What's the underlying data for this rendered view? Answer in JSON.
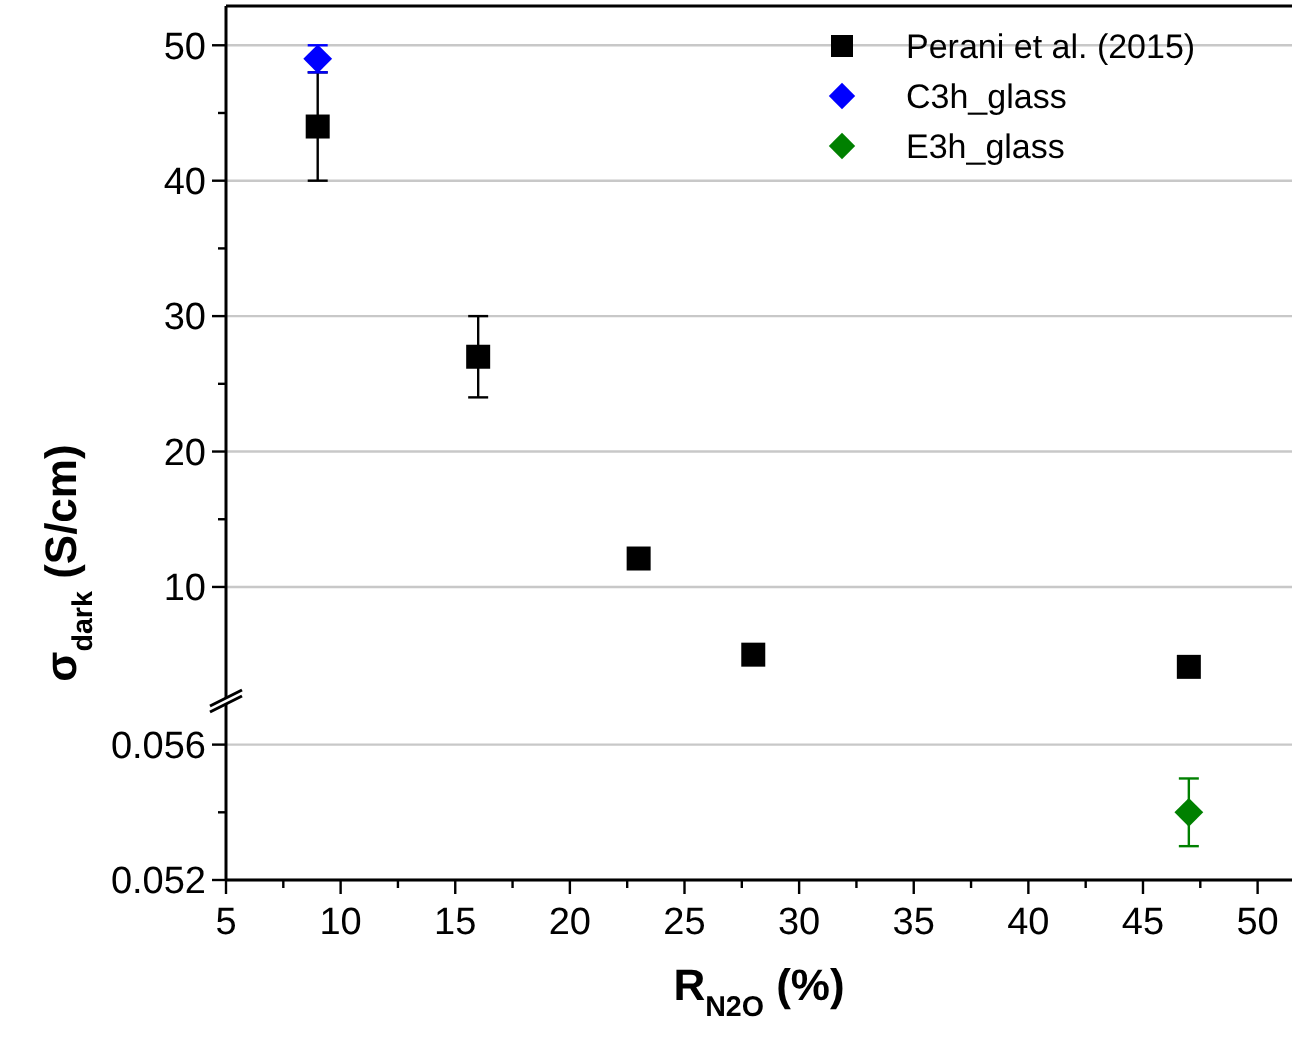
{
  "chart_data": [
    {
      "type": "scatter",
      "ylabel": "σ$_{dark}$ (S/cm)",
      "xlim": [
        5,
        51.5
      ],
      "ylim": [
        1.8,
        52.9
      ],
      "yticks": [
        10,
        {
          "value": 15,
          "label": null
        },
        20,
        {
          "value": 25,
          "label": null
        },
        30,
        {
          "value": 35,
          "label": null
        },
        40,
        {
          "value": 45,
          "label": null
        },
        50
      ],
      "tick_labels": "y",
      "grid": "y",
      "legend": "top right",
      "series": [
        {
          "name": "Perani et al. (2015)",
          "color": "#000000",
          "marker": "square",
          "x": [
            9,
            16,
            23,
            28,
            47
          ],
          "values": [
            44,
            27,
            12.1,
            5.0,
            4.1
          ],
          "errors": [
            4,
            3,
            0.7,
            null,
            null
          ]
        },
        {
          "name": "C3h_glass",
          "color": "#0000ff",
          "marker": "diamond",
          "x": [
            9
          ],
          "values": [
            49
          ],
          "errors": [
            1
          ]
        }
      ]
    },
    {
      "type": "scatter",
      "xlabel": "R$_{N2O}$ (%)",
      "xlim": [
        5,
        51.5
      ],
      "xticks": [
        5,
        {
          "value": 7.5,
          "label": null
        },
        10,
        {
          "value": 12.5,
          "label": null
        },
        15,
        {
          "value": 17.5,
          "label": null
        },
        20,
        {
          "value": 22.5,
          "label": null
        },
        25,
        {
          "value": 27.5,
          "label": null
        },
        30,
        {
          "value": 32.5,
          "label": null
        },
        35,
        {
          "value": 37.5,
          "label": null
        },
        40,
        {
          "value": 42.5,
          "label": null
        },
        45,
        {
          "value": 47.5,
          "label": null
        },
        50
      ],
      "ylim": [
        0.052,
        0.0572
      ],
      "yticks": [
        0.052,
        {
          "value": 0.054,
          "label": null
        },
        0.056
      ],
      "grid": "y",
      "legend": "top right",
      "series": [
        {
          "name": "E3h_glass",
          "color": "#008000",
          "marker": "diamond",
          "x": [
            47
          ],
          "values": [
            0.054
          ],
          "errors": [
            0.001
          ]
        }
      ]
    }
  ]
}
